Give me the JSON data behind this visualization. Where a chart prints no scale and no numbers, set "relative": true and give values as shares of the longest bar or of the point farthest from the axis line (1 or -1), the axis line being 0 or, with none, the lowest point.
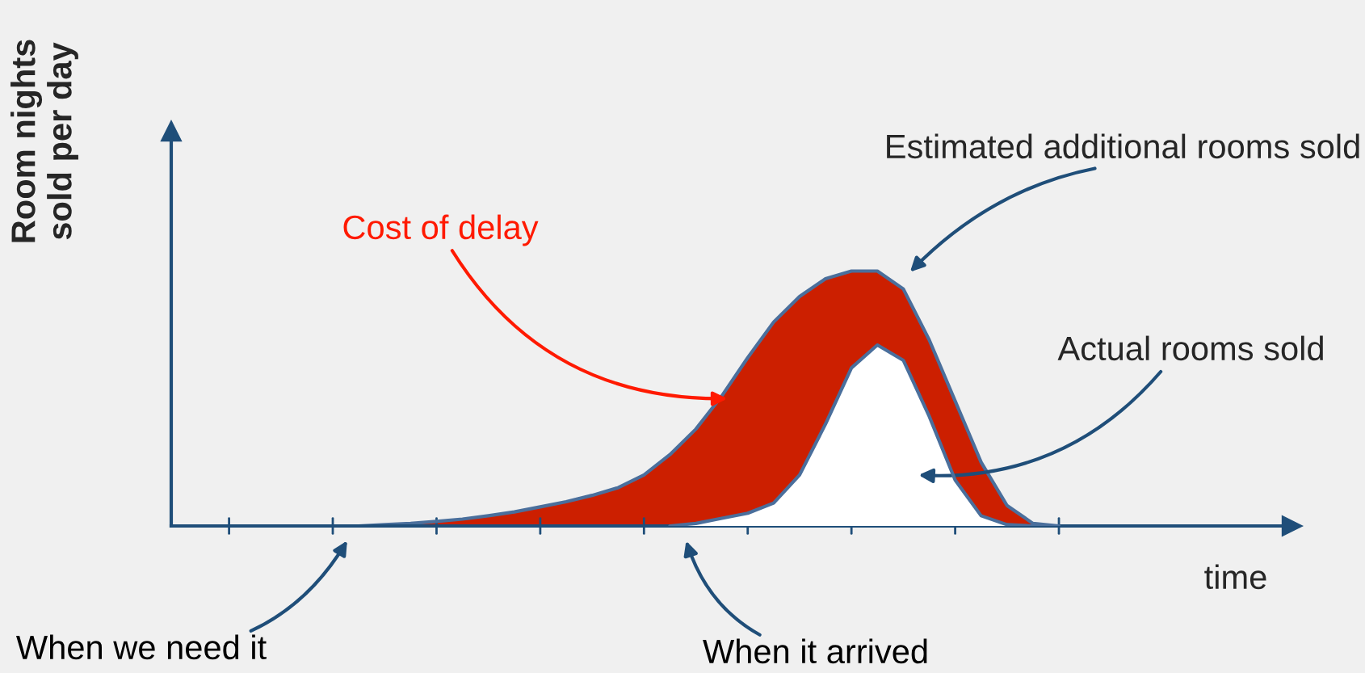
{
  "chart_data": {
    "type": "area",
    "relative": true,
    "ylabel": "Room nights\nsold per day",
    "xlabel": "time",
    "categories": [
      null,
      null,
      null,
      null,
      null,
      null,
      null,
      null,
      null,
      null,
      null,
      null,
      null,
      null,
      null,
      null,
      null,
      null,
      null,
      null,
      null,
      null,
      null,
      null,
      null,
      null,
      null,
      null,
      null,
      null,
      null,
      null,
      null,
      null,
      null
    ],
    "series": [
      {
        "name": "Estimated additional rooms sold",
        "color": "#cc1f00",
        "values": [
          null,
          null,
          null,
          null,
          null,
          null,
          null,
          0,
          0.005,
          0.01,
          0.018,
          0.027,
          0.04,
          0.055,
          0.075,
          0.095,
          0.12,
          0.15,
          0.2,
          0.28,
          0.38,
          0.51,
          0.66,
          0.8,
          0.9,
          0.97,
          1.0,
          1.0,
          0.93,
          0.73,
          0.49,
          0.25,
          0.08,
          0.01,
          0
        ]
      },
      {
        "name": "Actual rooms sold",
        "color": "#ffffff",
        "values": [
          null,
          null,
          null,
          null,
          null,
          null,
          null,
          null,
          null,
          null,
          null,
          null,
          null,
          null,
          null,
          null,
          null,
          null,
          null,
          0,
          0.01,
          0.03,
          0.05,
          0.09,
          0.2,
          0.4,
          0.62,
          0.71,
          0.65,
          0.43,
          0.18,
          0.04,
          0.005,
          0,
          0
        ]
      }
    ],
    "annotations": [
      "Cost of delay",
      "When we need it",
      "When it arrived"
    ],
    "legend": false
  }
}
